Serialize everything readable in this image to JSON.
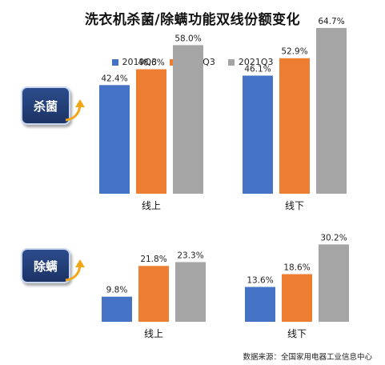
{
  "title": "洗衣机杀菌/除螨功能双线份额变化",
  "legend": [
    {
      "label": "2019Q3",
      "color": "#4472c4"
    },
    {
      "label": "2020Q3",
      "color": "#ed7d31"
    },
    {
      "label": "2021Q3",
      "color": "#a5a5a5"
    }
  ],
  "badges": {
    "top": "杀菌",
    "bottom": "除螨"
  },
  "source": "数据来源：全国家用电器工业信息中心",
  "chart_data": [
    {
      "type": "bar",
      "title": "杀菌",
      "categories": [
        "线上",
        "线下"
      ],
      "series": [
        {
          "name": "2019Q3",
          "values": [
            42.4,
            46.1
          ]
        },
        {
          "name": "2020Q3",
          "values": [
            48.6,
            52.9
          ]
        },
        {
          "name": "2021Q3",
          "values": [
            58.0,
            64.7
          ]
        }
      ],
      "data_labels": [
        [
          "42.4%",
          "46.1%"
        ],
        [
          "48.6%",
          "52.9%"
        ],
        [
          "58.0%",
          "64.7%"
        ]
      ],
      "unit": "%",
      "grid": false,
      "legend": "top-center"
    },
    {
      "type": "bar",
      "title": "除螨",
      "categories": [
        "线上",
        "线下"
      ],
      "series": [
        {
          "name": "2019Q3",
          "values": [
            9.8,
            13.6
          ]
        },
        {
          "name": "2020Q3",
          "values": [
            21.8,
            18.6
          ]
        },
        {
          "name": "2021Q3",
          "values": [
            23.3,
            30.2
          ]
        }
      ],
      "data_labels": [
        [
          "9.8%",
          "13.6%"
        ],
        [
          "21.8%",
          "18.6%"
        ],
        [
          "23.3%",
          "30.2%"
        ]
      ],
      "unit": "%",
      "grid": false,
      "legend": "top-center"
    }
  ]
}
